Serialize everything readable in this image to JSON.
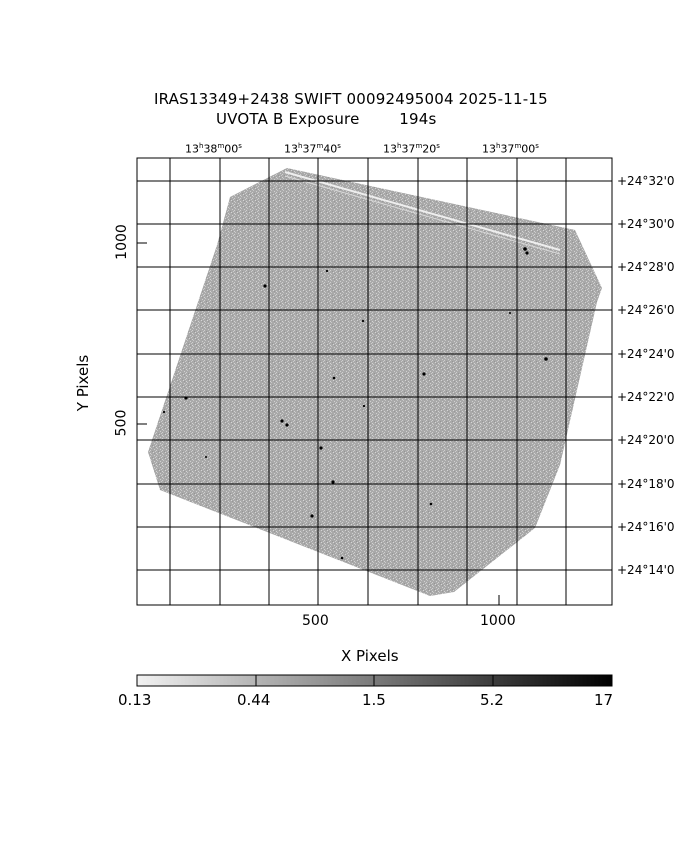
{
  "title": {
    "line1": "IRAS13349+2438 SWIFT 00092495004 2025-11-15",
    "line2": "UVOTA B Exposure        194s"
  },
  "axes": {
    "xlabel": "X Pixels",
    "ylabel": "Y Pixels",
    "x_ticks": [
      "500",
      "1000"
    ],
    "y_ticks": [
      "500",
      "1000"
    ]
  },
  "ra_labels": [
    {
      "h": "13",
      "m": "38",
      "s": "00"
    },
    {
      "h": "13",
      "m": "37",
      "s": "40"
    },
    {
      "h": "13",
      "m": "37",
      "s": "20"
    },
    {
      "h": "13",
      "m": "37",
      "s": "00"
    }
  ],
  "dec_labels": [
    "+24°32'0",
    "+24°30'0",
    "+24°28'0",
    "+24°26'0",
    "+24°24'0",
    "+24°22'0",
    "+24°20'0",
    "+24°18'0",
    "+24°16'0",
    "+24°14'0"
  ],
  "colorbar": {
    "ticks": [
      "0.13",
      "0.44",
      "1.5",
      "5.2",
      "17"
    ]
  },
  "colors": {
    "image_gray": "#a8a8a8",
    "grid": "#000000",
    "background": "#ffffff"
  }
}
